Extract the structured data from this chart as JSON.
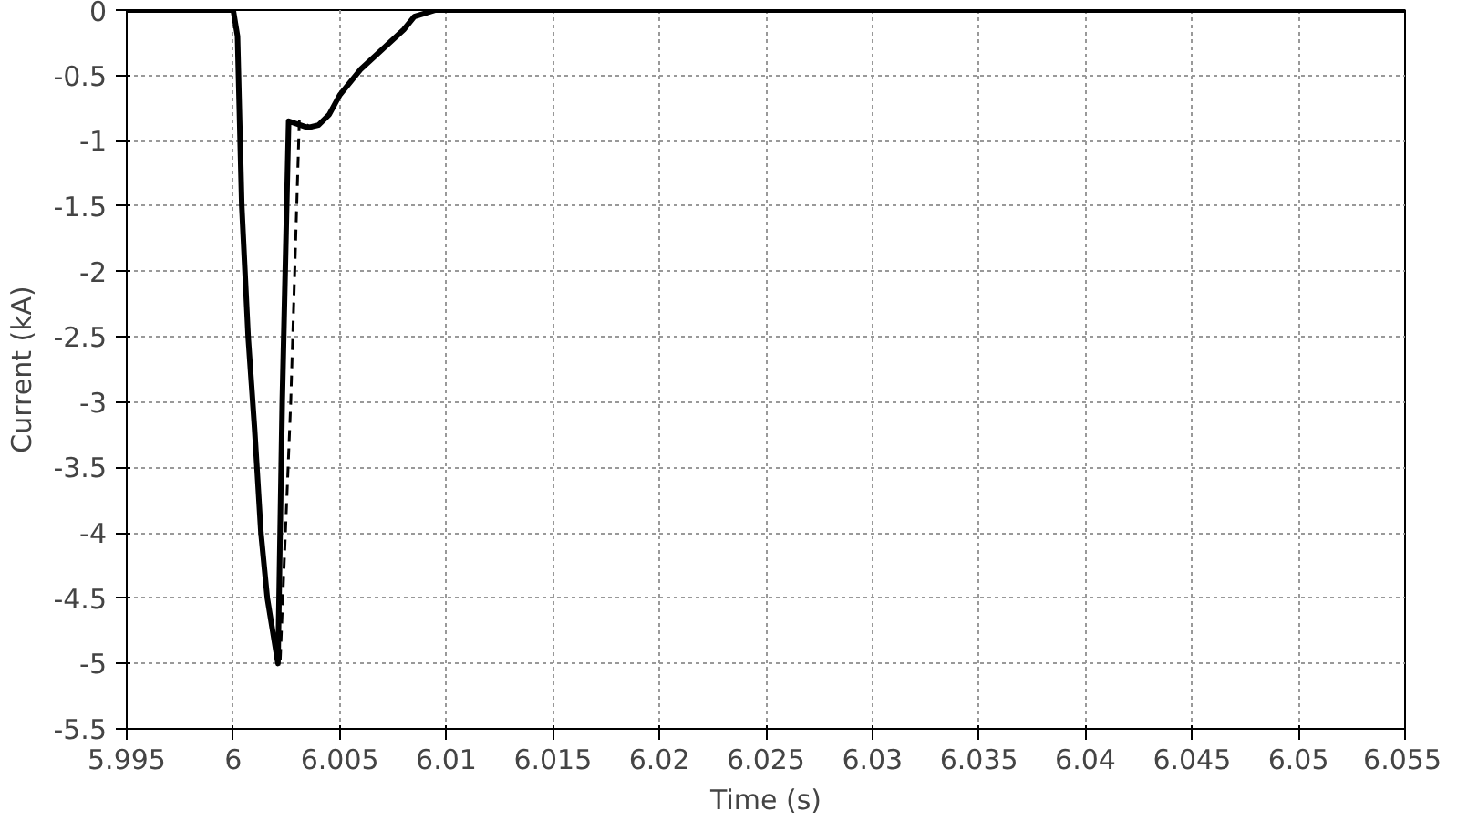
{
  "chart_data": {
    "type": "line",
    "xlabel": "Time (s)",
    "ylabel": "Current (kA)",
    "xlim": [
      5.995,
      6.055
    ],
    "ylim": [
      -5.5,
      0
    ],
    "xticks": [
      5.995,
      6,
      6.005,
      6.01,
      6.015,
      6.02,
      6.025,
      6.03,
      6.035,
      6.04,
      6.045,
      6.05,
      6.055
    ],
    "yticks": [
      -5.5,
      -5,
      -4.5,
      -4,
      -3.5,
      -3,
      -2.5,
      -2,
      -1.5,
      -1,
      -0.5,
      0
    ],
    "grid": true,
    "series": [
      {
        "color": "#000000",
        "line_style": "dashed",
        "x": [
          5.995,
          6.0,
          6.0002,
          6.0004,
          6.0007,
          6.001,
          6.0013,
          6.0016,
          6.0022,
          6.0027,
          6.0031,
          6.0037,
          6.004,
          6.0045,
          6.005,
          6.006,
          6.007,
          6.008,
          6.0085,
          6.0095,
          6.055
        ],
        "values": [
          0,
          0,
          -0.2,
          -1.5,
          -2.5,
          -3.2,
          -4,
          -4.5,
          -5,
          -3,
          -0.85,
          -0.9,
          -0.88,
          -0.8,
          -0.65,
          -0.45,
          -0.3,
          -0.15,
          -0.05,
          0,
          0
        ]
      },
      {
        "color": "#000000",
        "line_style": "solid",
        "x": [
          5.995,
          6.0,
          6.0002,
          6.0004,
          6.0007,
          6.001,
          6.0013,
          6.0016,
          6.0021,
          6.0023,
          6.0026,
          6.0035,
          6.004,
          6.0045,
          6.005,
          6.006,
          6.007,
          6.008,
          6.0085,
          6.0095,
          6.055
        ],
        "values": [
          0,
          0,
          -0.2,
          -1.5,
          -2.5,
          -3.2,
          -4,
          -4.5,
          -5,
          -3,
          -0.85,
          -0.9,
          -0.88,
          -0.8,
          -0.65,
          -0.45,
          -0.3,
          -0.15,
          -0.05,
          0,
          0
        ]
      }
    ]
  }
}
